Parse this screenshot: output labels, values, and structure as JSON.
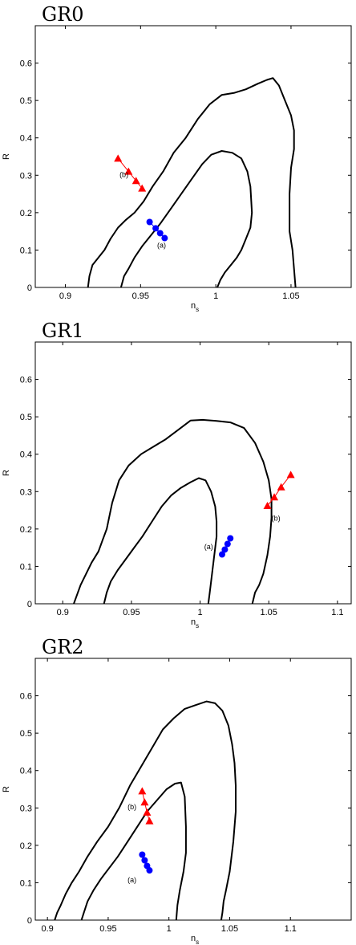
{
  "chart_data": [
    {
      "type": "line",
      "title": "GR0",
      "xlabel": "n",
      "xlabel_sub": "s",
      "ylabel": "R",
      "xlim": [
        0.88,
        1.09
      ],
      "ylim": [
        0,
        0.7
      ],
      "xticks": [
        0.9,
        0.95,
        1,
        1.05
      ],
      "xtick_labels": [
        "0.9",
        "0.95",
        "1",
        "1.05"
      ],
      "yticks": [
        0,
        0.1,
        0.2,
        0.3,
        0.4,
        0.5,
        0.6
      ],
      "ytick_labels": [
        "0",
        "0.1",
        "0.2",
        "0.3",
        "0.4",
        "0.5",
        "0.6"
      ],
      "grid": false,
      "contours": [
        {
          "x": [
            0.915,
            0.916,
            0.918,
            0.922,
            0.926,
            0.93,
            0.935,
            0.94,
            0.946,
            0.952,
            0.958,
            0.965,
            0.972,
            0.98,
            0.988,
            0.996,
            1.004,
            1.012,
            1.02,
            1.028,
            1.034,
            1.038,
            1.042,
            1.046,
            1.05,
            1.052,
            1.052,
            1.05,
            1.049,
            1.049,
            1.051,
            1.052,
            1.053
          ],
          "y": [
            0.0,
            0.03,
            0.06,
            0.08,
            0.1,
            0.13,
            0.16,
            0.18,
            0.2,
            0.23,
            0.27,
            0.31,
            0.36,
            0.4,
            0.45,
            0.49,
            0.515,
            0.52,
            0.53,
            0.545,
            0.555,
            0.56,
            0.54,
            0.5,
            0.46,
            0.42,
            0.37,
            0.32,
            0.25,
            0.15,
            0.1,
            0.05,
            0.0
          ]
        },
        {
          "x": [
            0.937,
            0.939,
            0.942,
            0.946,
            0.951,
            0.957,
            0.963,
            0.97,
            0.977,
            0.984,
            0.991,
            0.997,
            1.004,
            1.011,
            1.017,
            1.021,
            1.023,
            1.024,
            1.023,
            1.02,
            1.017,
            1.014,
            1.01,
            1.006,
            1.003,
            1.001
          ],
          "y": [
            0.0,
            0.03,
            0.05,
            0.08,
            0.11,
            0.14,
            0.17,
            0.21,
            0.25,
            0.29,
            0.33,
            0.355,
            0.365,
            0.36,
            0.345,
            0.31,
            0.27,
            0.2,
            0.16,
            0.13,
            0.1,
            0.08,
            0.06,
            0.04,
            0.02,
            0.0
          ]
        }
      ],
      "series": [
        {
          "label": "(b)",
          "marker": "triangle",
          "color": "#ff0000",
          "x": [
            0.935,
            0.942,
            0.947,
            0.951
          ],
          "y": [
            0.345,
            0.31,
            0.285,
            0.265
          ],
          "label_at": [
            0.936,
            0.295
          ]
        },
        {
          "label": "(a)",
          "marker": "circle",
          "color": "#0000ff",
          "x": [
            0.956,
            0.96,
            0.963,
            0.966
          ],
          "y": [
            0.175,
            0.158,
            0.145,
            0.132
          ],
          "label_at": [
            0.961,
            0.106
          ]
        }
      ]
    },
    {
      "type": "line",
      "title": "GR1",
      "xlabel": "n",
      "xlabel_sub": "s",
      "ylabel": "R",
      "xlim": [
        0.88,
        1.11
      ],
      "ylim": [
        0,
        0.7
      ],
      "xticks": [
        0.9,
        0.95,
        1,
        1.05,
        1.1
      ],
      "xtick_labels": [
        "0.9",
        "0.95",
        "1",
        "1.05",
        "1.1"
      ],
      "yticks": [
        0,
        0.1,
        0.2,
        0.3,
        0.4,
        0.5,
        0.6
      ],
      "ytick_labels": [
        "0",
        "0.1",
        "0.2",
        "0.3",
        "0.4",
        "0.5",
        "0.6"
      ],
      "grid": false,
      "contours": [
        {
          "x": [
            0.908,
            0.91,
            0.913,
            0.917,
            0.921,
            0.926,
            0.929,
            0.932,
            0.936,
            0.941,
            0.948,
            0.957,
            0.966,
            0.975,
            0.984,
            0.993,
            1.002,
            1.012,
            1.022,
            1.032,
            1.04,
            1.046,
            1.05,
            1.052,
            1.052,
            1.051,
            1.049,
            1.046,
            1.043,
            1.04,
            1.039,
            1.038
          ],
          "y": [
            0.0,
            0.02,
            0.05,
            0.08,
            0.11,
            0.14,
            0.17,
            0.2,
            0.27,
            0.33,
            0.37,
            0.4,
            0.42,
            0.44,
            0.465,
            0.49,
            0.492,
            0.489,
            0.485,
            0.47,
            0.43,
            0.38,
            0.33,
            0.28,
            0.23,
            0.18,
            0.13,
            0.08,
            0.05,
            0.03,
            0.015,
            0.0
          ]
        },
        {
          "x": [
            0.93,
            0.932,
            0.935,
            0.94,
            0.946,
            0.952,
            0.958,
            0.965,
            0.972,
            0.979,
            0.986,
            0.993,
            0.999,
            1.004,
            1.008,
            1.011,
            1.012,
            1.012,
            1.011,
            1.01,
            1.009,
            1.008,
            1.007,
            1.006
          ],
          "y": [
            0.0,
            0.03,
            0.06,
            0.09,
            0.12,
            0.15,
            0.18,
            0.22,
            0.26,
            0.29,
            0.31,
            0.325,
            0.336,
            0.33,
            0.3,
            0.26,
            0.22,
            0.18,
            0.15,
            0.12,
            0.09,
            0.06,
            0.03,
            0.0
          ]
        }
      ],
      "series": [
        {
          "label": "(b)",
          "marker": "triangle",
          "color": "#ff0000",
          "x": [
            1.066,
            1.059,
            1.054,
            1.049
          ],
          "y": [
            0.345,
            0.312,
            0.285,
            0.262
          ],
          "label_at": [
            1.052,
            0.222
          ]
        },
        {
          "label": "(a)",
          "marker": "circle",
          "color": "#0000ff",
          "x": [
            1.022,
            1.02,
            1.018,
            1.016
          ],
          "y": [
            0.175,
            0.16,
            0.145,
            0.132
          ],
          "label_at": [
            1.003,
            0.146
          ]
        }
      ]
    },
    {
      "type": "line",
      "title": "GR2",
      "xlabel": "n",
      "xlabel_sub": "s",
      "ylabel": "R",
      "xlim": [
        0.89,
        1.15
      ],
      "ylim": [
        0,
        0.7
      ],
      "xticks": [
        0.9,
        0.95,
        1,
        1.05,
        1.1
      ],
      "xtick_labels": [
        "0.9",
        "0.95",
        "1",
        "1.05",
        "1.1"
      ],
      "yticks": [
        0,
        0.1,
        0.2,
        0.3,
        0.4,
        0.5,
        0.6
      ],
      "ytick_labels": [
        "0",
        "0.1",
        "0.2",
        "0.3",
        "0.4",
        "0.5",
        "0.6"
      ],
      "grid": false,
      "contours": [
        {
          "x": [
            0.906,
            0.908,
            0.911,
            0.915,
            0.92,
            0.926,
            0.933,
            0.941,
            0.95,
            0.959,
            0.968,
            0.977,
            0.986,
            0.995,
            1.004,
            1.013,
            1.022,
            1.031,
            1.038,
            1.044,
            1.049,
            1.052,
            1.054,
            1.055,
            1.055,
            1.053,
            1.05,
            1.047,
            1.045,
            1.044,
            1.043
          ],
          "y": [
            0.0,
            0.02,
            0.04,
            0.07,
            0.1,
            0.13,
            0.17,
            0.21,
            0.25,
            0.3,
            0.36,
            0.41,
            0.46,
            0.51,
            0.54,
            0.565,
            0.575,
            0.585,
            0.58,
            0.56,
            0.52,
            0.47,
            0.42,
            0.36,
            0.29,
            0.21,
            0.13,
            0.08,
            0.05,
            0.02,
            0.0
          ]
        },
        {
          "x": [
            0.928,
            0.93,
            0.933,
            0.938,
            0.944,
            0.951,
            0.958,
            0.966,
            0.974,
            0.982,
            0.99,
            0.998,
            1.005,
            1.01,
            1.013,
            1.014,
            1.014,
            1.012,
            1.009,
            1.007,
            1.006
          ],
          "y": [
            0.0,
            0.02,
            0.05,
            0.08,
            0.11,
            0.14,
            0.17,
            0.21,
            0.25,
            0.29,
            0.32,
            0.35,
            0.365,
            0.368,
            0.33,
            0.25,
            0.18,
            0.13,
            0.08,
            0.04,
            0.0
          ]
        }
      ],
      "series": [
        {
          "label": "(b)",
          "marker": "triangle",
          "color": "#ff0000",
          "x": [
            0.978,
            0.98,
            0.982,
            0.984
          ],
          "y": [
            0.345,
            0.315,
            0.288,
            0.265
          ],
          "label_at": [
            0.966,
            0.296
          ]
        },
        {
          "label": "(a)",
          "marker": "circle",
          "color": "#0000ff",
          "x": [
            0.978,
            0.98,
            0.982,
            0.984
          ],
          "y": [
            0.175,
            0.16,
            0.145,
            0.133
          ],
          "label_at": [
            0.966,
            0.101
          ]
        }
      ]
    }
  ]
}
